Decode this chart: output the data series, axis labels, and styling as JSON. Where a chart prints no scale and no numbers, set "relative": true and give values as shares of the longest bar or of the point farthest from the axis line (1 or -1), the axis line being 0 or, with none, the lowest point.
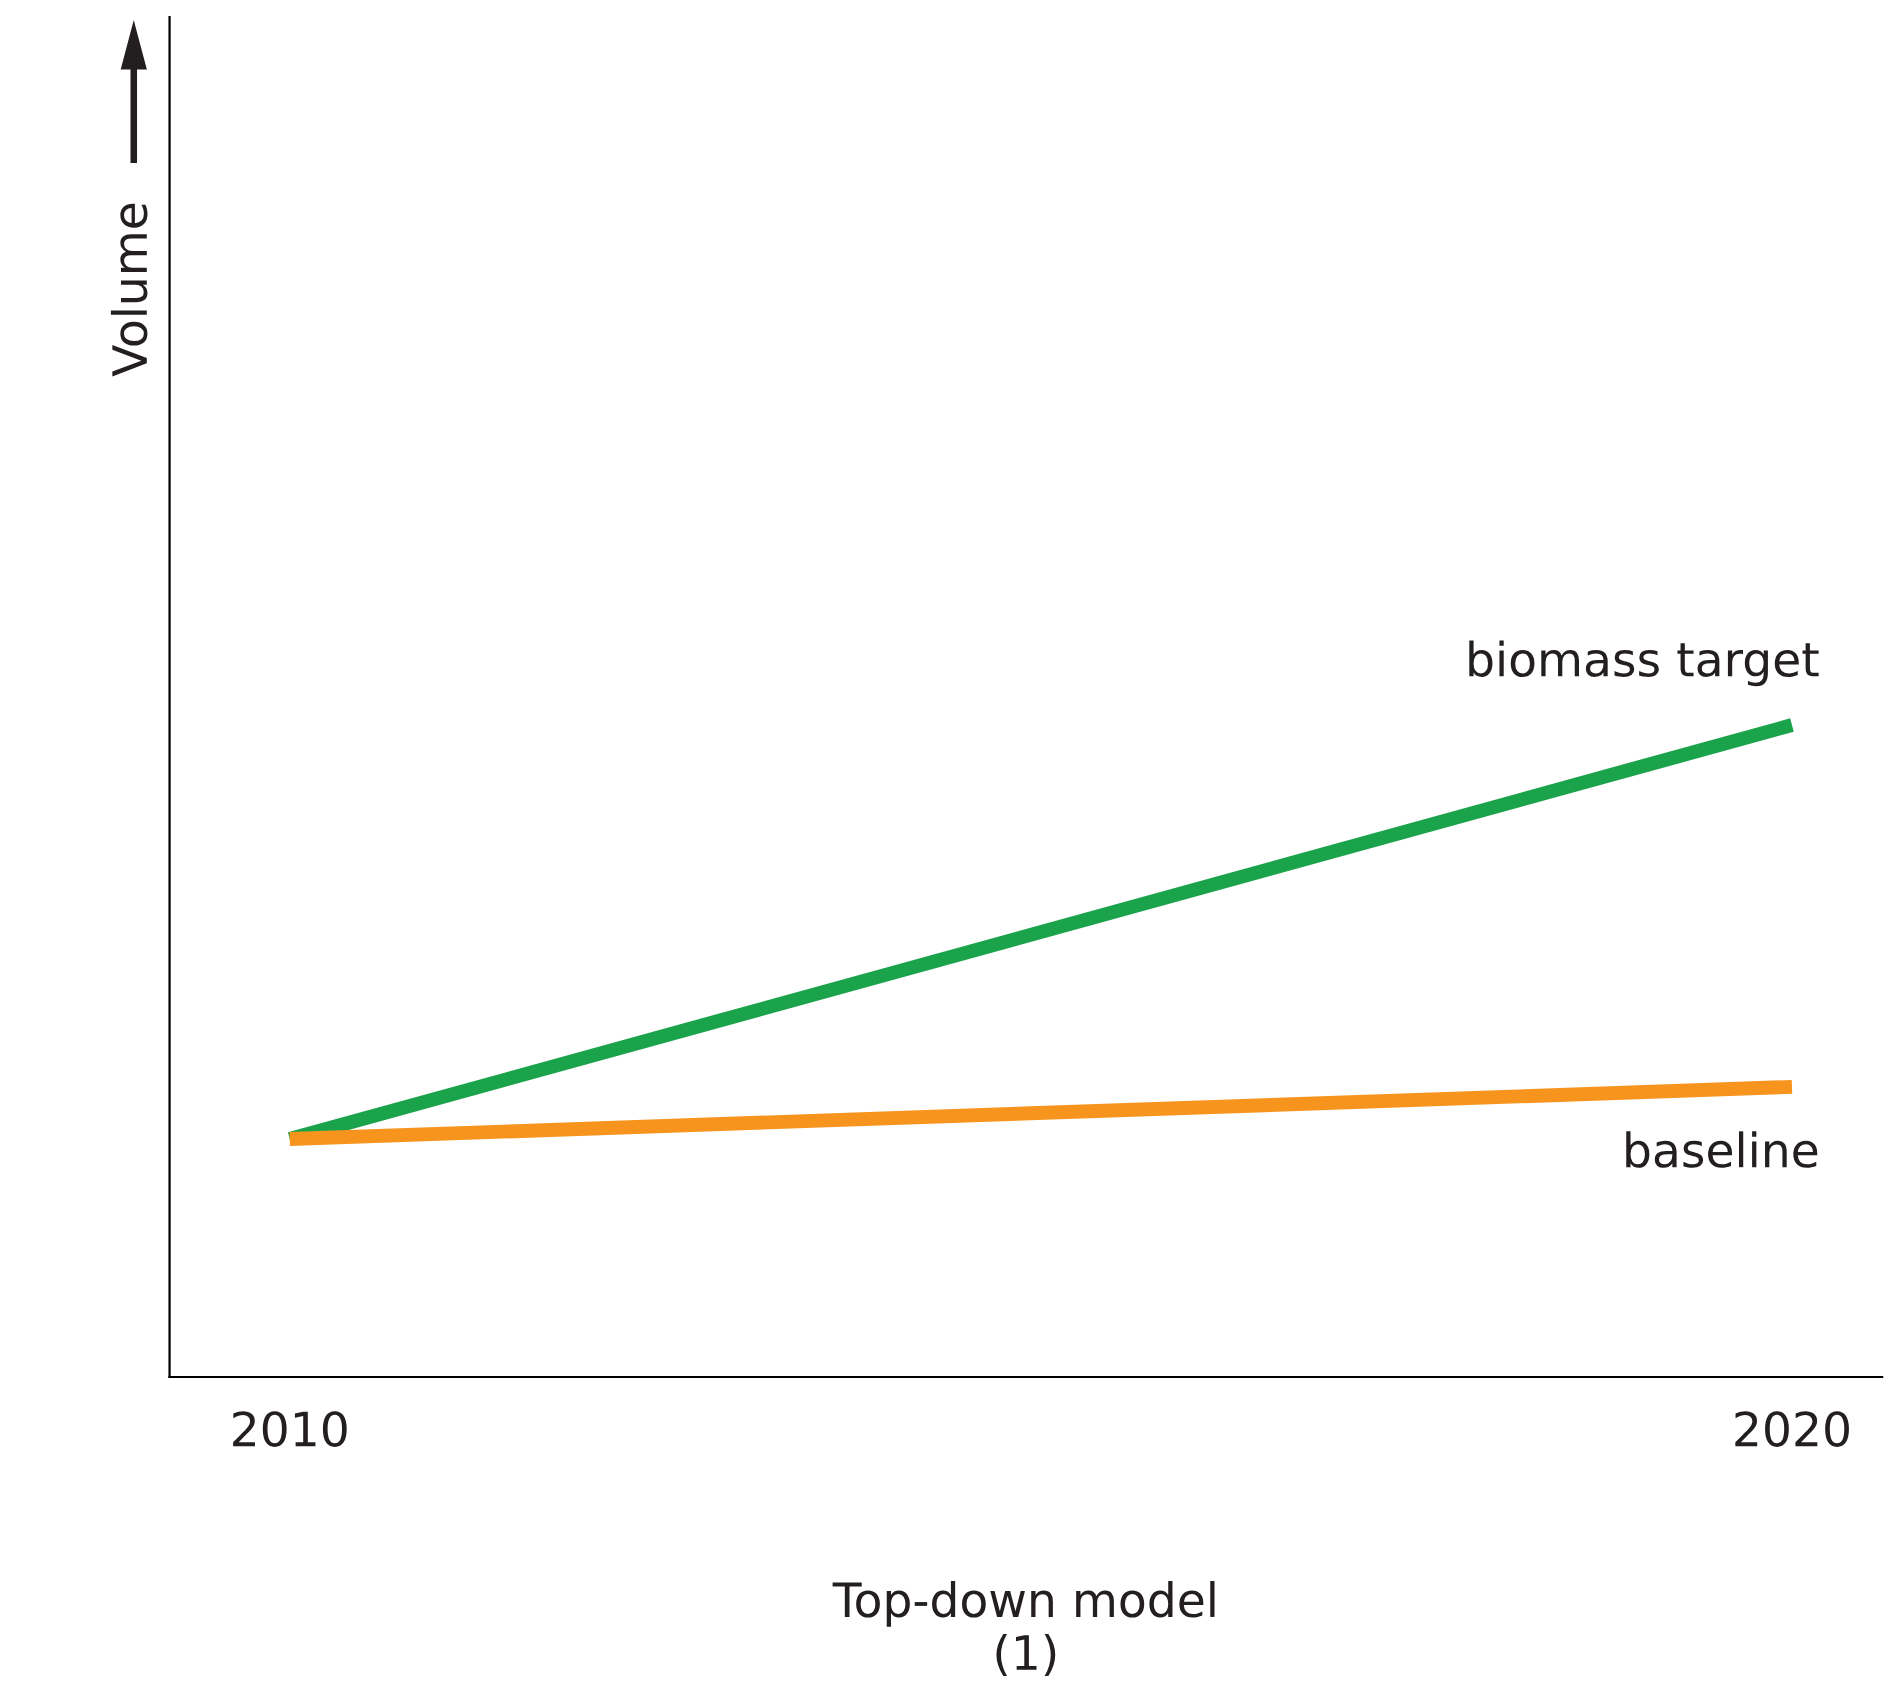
{
  "chart_data": {
    "type": "line",
    "relative": true,
    "xlabel": "Top-down model\n(1)",
    "annotations": [
      "Volume"
    ],
    "x": [
      2010,
      2020
    ],
    "xlim": [
      2009.2,
      2020.6
    ],
    "xticks": [
      2010,
      2020
    ],
    "grid": false,
    "legend": false,
    "marker": "none",
    "line_style": "solid",
    "series": [
      {
        "name": "biomass target",
        "color": "#1aa34a",
        "values": [
          0.365,
          1
        ]
      },
      {
        "name": "baseline",
        "color": "#f7941d",
        "values": [
          0.365,
          0.445
        ]
      }
    ]
  }
}
